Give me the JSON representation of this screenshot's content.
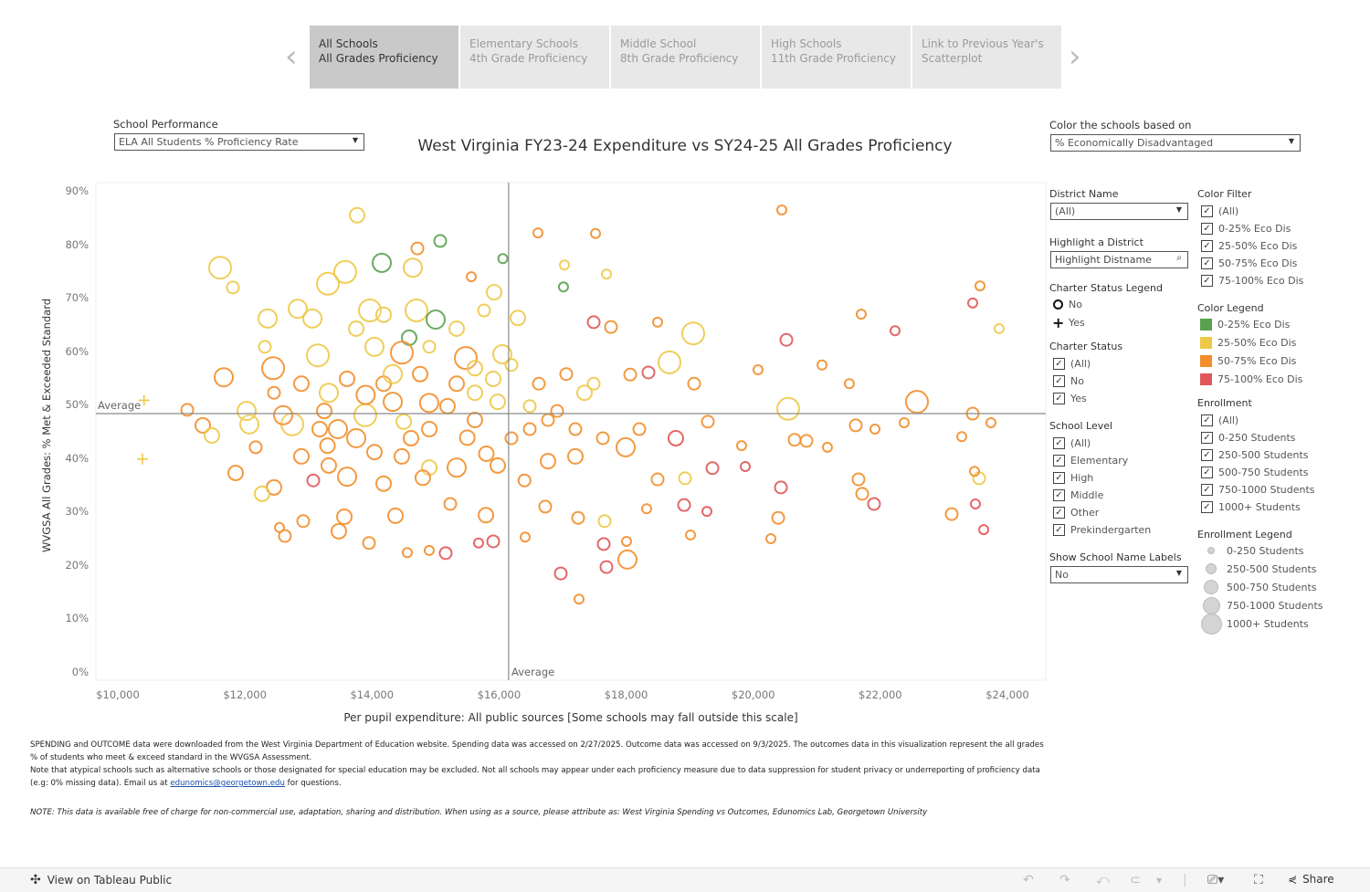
{
  "nav": {
    "tabs": [
      {
        "line1": "All Schools",
        "line2": "All Grades Proficiency",
        "active": true
      },
      {
        "line1": "Elementary Schools",
        "line2": "4th Grade Proficiency",
        "active": false
      },
      {
        "line1": "Middle School",
        "line2": "8th Grade Proficiency",
        "active": false
      },
      {
        "line1": "High Schools",
        "line2": "11th Grade Proficiency",
        "active": false
      },
      {
        "line1": "Link to Previous Year's",
        "line2": "Scatterplot",
        "active": false
      }
    ],
    "prev_icon": "‹",
    "next_icon": "›"
  },
  "controls": {
    "school_performance_label": "School Performance",
    "school_performance_value": "ELA All Students % Proficiency Rate",
    "color_by_label": "Color the schools based on",
    "color_by_value": "% Economically Disadvantaged"
  },
  "chart_data": {
    "type": "scatter",
    "title": "West Virginia FY23-24 Expenditure vs SY24-25 All Grades Proficiency",
    "xlabel": "Per pupil expenditure: All public sources [Some schools may fall outside this scale]",
    "ylabel": "WVGSA All Grades: % Met & Exceeded Standard",
    "xlim": [
      9700,
      24600
    ],
    "ylim": [
      0,
      91
    ],
    "x_ticks": [
      "$10,000",
      "$12,000",
      "$14,000",
      "$16,000",
      "$18,000",
      "$20,000",
      "$22,000",
      "$24,000"
    ],
    "x_tick_values": [
      10000,
      12000,
      14000,
      16000,
      18000,
      20000,
      22000,
      24000
    ],
    "y_ticks": [
      "0%",
      "10%",
      "20%",
      "30%",
      "40%",
      "50%",
      "60%",
      "70%",
      "80%",
      "90%"
    ],
    "y_tick_values": [
      0,
      10,
      20,
      30,
      40,
      50,
      60,
      70,
      80,
      90
    ],
    "average_x": 16150,
    "average_y": 48.5,
    "average_label": "Average",
    "grid": false,
    "color_groups": [
      "0-25% Eco Dis",
      "25-50% Eco Dis",
      "50-75% Eco Dis",
      "75-100% Eco Dis"
    ],
    "colors": [
      "#59a14f",
      "#edc948",
      "#f28e2b",
      "#e15759"
    ],
    "size_groups": [
      "0-250 Students",
      "250-500 Students",
      "500-750 Students",
      "750-1000 Students",
      "1000+ Students"
    ],
    "point_fields": [
      "expenditure",
      "pct_met_exceeded",
      "eco_dis_group",
      "enrollment_group"
    ],
    "points": [
      [
        13766,
        85.6,
        1,
        2
      ],
      [
        15074,
        80.8,
        0,
        1
      ],
      [
        14154,
        76.7,
        0,
        3
      ],
      [
        14643,
        75.8,
        1,
        3
      ],
      [
        11610,
        75.8,
        1,
        4
      ],
      [
        13579,
        75,
        1,
        4
      ],
      [
        13306,
        72.8,
        1,
        4
      ],
      [
        11811,
        72.1,
        1,
        1
      ],
      [
        14715,
        79.4,
        2,
        1
      ],
      [
        15563,
        74.1,
        2,
        0
      ],
      [
        15922,
        71.2,
        1,
        2
      ],
      [
        16612,
        82.3,
        2,
        0
      ],
      [
        17518,
        82.2,
        2,
        0
      ],
      [
        17029,
        76.3,
        1,
        0
      ],
      [
        17014,
        72.2,
        0,
        0
      ],
      [
        17690,
        74.6,
        1,
        0
      ],
      [
        16060,
        77.5,
        0,
        0
      ],
      [
        20450,
        86.6,
        2,
        0
      ],
      [
        23569,
        72.4,
        2,
        0
      ],
      [
        23454,
        69.2,
        3,
        0
      ],
      [
        23871,
        64.4,
        1,
        0
      ],
      [
        22232,
        64,
        3,
        0
      ],
      [
        21700,
        67.1,
        2,
        0
      ],
      [
        13967,
        67.8,
        1,
        4
      ],
      [
        14700,
        67.8,
        1,
        4
      ],
      [
        15002,
        66.1,
        0,
        3
      ],
      [
        14585,
        62.7,
        0,
        2
      ],
      [
        16296,
        66.4,
        1,
        2
      ],
      [
        12832,
        68.1,
        1,
        3
      ],
      [
        12358,
        66.3,
        1,
        3
      ],
      [
        13062,
        66.3,
        1,
        3
      ],
      [
        19056,
        63.5,
        1,
        4
      ],
      [
        17489,
        65.6,
        3,
        1
      ],
      [
        17762,
        64.7,
        2,
        1
      ],
      [
        18495,
        65.6,
        2,
        0
      ],
      [
        20522,
        62.3,
        3,
        1
      ],
      [
        11667,
        55.3,
        2,
        3
      ],
      [
        12444,
        57,
        2,
        4
      ],
      [
        13148,
        59.4,
        1,
        4
      ],
      [
        14039,
        61,
        1,
        3
      ],
      [
        14470,
        59.9,
        2,
        4
      ],
      [
        15476,
        58.9,
        2,
        4
      ],
      [
        16051,
        59.6,
        1,
        3
      ],
      [
        18682,
        58.1,
        1,
        4
      ],
      [
        22577,
        50.7,
        2,
        4
      ],
      [
        20550,
        49.4,
        1,
        4
      ],
      [
        11093,
        49.2,
        2,
        1
      ],
      [
        11337,
        46.3,
        2,
        2
      ],
      [
        11481,
        44.4,
        1,
        2
      ],
      [
        12070,
        46.5,
        1,
        3
      ],
      [
        12746,
        46.5,
        1,
        4
      ],
      [
        13320,
        52.4,
        1,
        3
      ],
      [
        13895,
        48.2,
        1,
        4
      ],
      [
        14327,
        50.7,
        2,
        3
      ],
      [
        15189,
        49.9,
        2,
        2
      ],
      [
        15620,
        47.3,
        2,
        2
      ],
      [
        15979,
        50.7,
        1,
        2
      ],
      [
        16483,
        49.9,
        1,
        1
      ],
      [
        16914,
        49,
        2,
        1
      ],
      [
        17345,
        52.4,
        1,
        2
      ],
      [
        18064,
        55.8,
        2,
        1
      ],
      [
        18351,
        56.2,
        3,
        1
      ],
      [
        19070,
        54.1,
        2,
        1
      ],
      [
        20076,
        56.7,
        2,
        0
      ],
      [
        21082,
        57.6,
        2,
        0
      ],
      [
        21513,
        54.1,
        2,
        0
      ],
      [
        23454,
        48.5,
        2,
        1
      ],
      [
        23741,
        46.8,
        2,
        0
      ],
      [
        23282,
        44.2,
        2,
        0
      ],
      [
        21916,
        45.6,
        2,
        0
      ],
      [
        21614,
        46.3,
        2,
        1
      ],
      [
        22376,
        46.8,
        2,
        0
      ],
      [
        18782,
        43.9,
        3,
        2
      ],
      [
        19286,
        47,
        2,
        1
      ],
      [
        19817,
        42.5,
        2,
        0
      ],
      [
        20651,
        43.6,
        2,
        1
      ],
      [
        20838,
        43.4,
        2,
        1
      ],
      [
        21168,
        42.2,
        2,
        0
      ],
      [
        11854,
        37.4,
        2,
        2
      ],
      [
        12458,
        34.7,
        2,
        2
      ],
      [
        12271,
        33.5,
        1,
        2
      ],
      [
        13076,
        36,
        3,
        1
      ],
      [
        13608,
        36.7,
        2,
        3
      ],
      [
        14183,
        35.4,
        2,
        2
      ],
      [
        14902,
        38.4,
        1,
        2
      ],
      [
        15333,
        38.4,
        2,
        3
      ],
      [
        15979,
        38.8,
        2,
        2
      ],
      [
        16770,
        39.6,
        2,
        2
      ],
      [
        17201,
        40.5,
        2,
        2
      ],
      [
        17992,
        42.2,
        2,
        3
      ],
      [
        18495,
        36.2,
        2,
        1
      ],
      [
        19358,
        38.3,
        3,
        1
      ],
      [
        19875,
        38.6,
        3,
        0
      ],
      [
        18926,
        36.4,
        1,
        1
      ],
      [
        21657,
        36.2,
        2,
        1
      ],
      [
        21715,
        33.5,
        2,
        1
      ],
      [
        21901,
        31.6,
        3,
        1
      ],
      [
        20436,
        34.7,
        3,
        1
      ],
      [
        23555,
        36.4,
        1,
        1
      ],
      [
        23483,
        37.7,
        2,
        0
      ],
      [
        23497,
        31.6,
        3,
        0
      ],
      [
        23124,
        29.7,
        2,
        1
      ],
      [
        23627,
        26.8,
        3,
        0
      ],
      [
        12918,
        28.4,
        2,
        1
      ],
      [
        13565,
        29.2,
        2,
        2
      ],
      [
        13478,
        26.5,
        2,
        2
      ],
      [
        14370,
        29.4,
        2,
        2
      ],
      [
        15232,
        31.6,
        2,
        1
      ],
      [
        15793,
        29.5,
        2,
        2
      ],
      [
        16727,
        31.1,
        2,
        1
      ],
      [
        17244,
        29,
        2,
        1
      ],
      [
        17661,
        28.4,
        1,
        1
      ],
      [
        18322,
        30.7,
        2,
        0
      ],
      [
        18912,
        31.4,
        3,
        1
      ],
      [
        19271,
        30.2,
        3,
        0
      ],
      [
        20393,
        29,
        2,
        1
      ],
      [
        12630,
        25.6,
        2,
        1
      ],
      [
        12544,
        27.2,
        2,
        0
      ],
      [
        13953,
        24.3,
        2,
        1
      ],
      [
        14556,
        22.5,
        2,
        0
      ],
      [
        14901,
        22.9,
        2,
        0
      ],
      [
        15160,
        22.4,
        3,
        1
      ],
      [
        15678,
        24.3,
        3,
        0
      ],
      [
        15908,
        24.6,
        3,
        1
      ],
      [
        16411,
        25.4,
        2,
        0
      ],
      [
        17647,
        24.1,
        3,
        1
      ],
      [
        18006,
        24.6,
        2,
        0
      ],
      [
        17690,
        19.8,
        3,
        1
      ],
      [
        18020,
        21.2,
        2,
        3
      ],
      [
        16971,
        18.6,
        3,
        1
      ],
      [
        17259,
        13.8,
        2,
        0
      ],
      [
        19013,
        25.8,
        2,
        0
      ],
      [
        20278,
        25.1,
        2,
        0
      ],
      [
        13752,
        43.9,
        2,
        3
      ],
      [
        14039,
        41.3,
        2,
        2
      ],
      [
        14614,
        43.9,
        2,
        2
      ],
      [
        13464,
        45.6,
        2,
        3
      ],
      [
        12889,
        40.5,
        2,
        2
      ],
      [
        12602,
        48.2,
        2,
        3
      ],
      [
        13177,
        45.6,
        2,
        2
      ],
      [
        14183,
        54.1,
        2,
        2
      ],
      [
        13608,
        55,
        2,
        2
      ],
      [
        14758,
        55.9,
        2,
        2
      ],
      [
        15333,
        54.1,
        2,
        2
      ],
      [
        15620,
        52.4,
        1,
        2
      ],
      [
        15908,
        55,
        1,
        2
      ],
      [
        16195,
        57.6,
        1,
        1
      ],
      [
        16626,
        54.1,
        2,
        1
      ],
      [
        17057,
        55.9,
        2,
        1
      ],
      [
        17489,
        54.1,
        1,
        1
      ],
      [
        16770,
        47.3,
        2,
        1
      ],
      [
        17201,
        45.6,
        2,
        1
      ],
      [
        17633,
        43.9,
        2,
        1
      ],
      [
        18207,
        45.6,
        2,
        1
      ],
      [
        16195,
        43.9,
        2,
        1
      ],
      [
        16483,
        45.6,
        2,
        1
      ],
      [
        14902,
        45.6,
        2,
        2
      ],
      [
        14470,
        40.5,
        2,
        2
      ],
      [
        13320,
        38.8,
        2,
        2
      ],
      [
        12027,
        49,
        1,
        3
      ],
      [
        12170,
        42.2,
        2,
        1
      ],
      [
        12458,
        52.4,
        2,
        1
      ],
      [
        12889,
        54.1,
        2,
        2
      ],
      [
        13249,
        49,
        2,
        2
      ],
      [
        14183,
        67,
        1,
        2
      ],
      [
        13752,
        64.4,
        1,
        2
      ],
      [
        14327,
        55.9,
        1,
        3
      ],
      [
        15333,
        64.4,
        1,
        2
      ],
      [
        15764,
        67.8,
        1,
        1
      ],
      [
        15620,
        57,
        1,
        2
      ],
      [
        14902,
        61,
        1,
        1
      ],
      [
        12314,
        61,
        1,
        1
      ],
      [
        14900,
        50.5,
        2,
        3
      ],
      [
        15500,
        44,
        2,
        2
      ],
      [
        13900,
        52,
        2,
        3
      ],
      [
        14500,
        47,
        1,
        2
      ],
      [
        15800,
        41,
        2,
        2
      ],
      [
        16400,
        36,
        2,
        1
      ],
      [
        13300,
        42.5,
        2,
        2
      ],
      [
        14800,
        36.5,
        2,
        2
      ]
    ],
    "charter_points": [
      [
        10413,
        51
      ],
      [
        10388,
        40
      ]
    ]
  },
  "filters": {
    "district_name": {
      "label": "District Name",
      "value": "(All)"
    },
    "highlight": {
      "label": "Highlight a District",
      "placeholder": "Highlight Distname"
    },
    "charter_legend": {
      "label": "Charter Status Legend",
      "items": [
        {
          "icon": "circle-icon",
          "label": "No"
        },
        {
          "icon": "plus-icon",
          "label": "Yes"
        }
      ]
    },
    "charter_status": {
      "label": "Charter Status",
      "items": [
        "(All)",
        "No",
        "Yes"
      ]
    },
    "school_level": {
      "label": "School Level",
      "items": [
        "(All)",
        "Elementary",
        "High",
        "Middle",
        "Other",
        "Prekindergarten"
      ]
    },
    "labels": {
      "label": "Show School Name Labels",
      "value": "No"
    },
    "color_filter": {
      "label": "Color Filter",
      "items": [
        "(All)",
        "0-25% Eco Dis",
        "25-50% Eco Dis",
        "50-75% Eco Dis",
        "75-100% Eco Dis"
      ]
    },
    "color_legend": {
      "label": "Color Legend",
      "items": [
        "0-25% Eco Dis",
        "25-50% Eco Dis",
        "50-75% Eco Dis",
        "75-100% Eco Dis"
      ]
    },
    "enrollment": {
      "label": "Enrollment",
      "items": [
        "(All)",
        "0-250 Students",
        "250-500 Students",
        "500-750 Students",
        "750-1000 Students",
        "1000+ Students"
      ]
    },
    "enrollment_legend": {
      "label": "Enrollment Legend",
      "items": [
        "0-250 Students",
        "250-500 Students",
        "500-750 Students",
        "750-1000 Students",
        "1000+ Students"
      ]
    },
    "check_mark": "✓"
  },
  "footnote": {
    "p1": "SPENDING and OUTCOME data were downloaded from the West Virginia Department of Education website. Spending data was accessed on 2/27/2025. Outcome data was accessed on 9/3/2025. The outcomes data in this visualization represent the all grades % of students who meet & exceed standard in the WVGSA Assessment.",
    "p2a": "Note that atypical schools such as alternative schools or those designated for special education may be excluded. Not all schools may appear under each proficiency measure due to data suppression for student privacy or underreporting of proficiency data (e.g: 0% missing data). Email us at ",
    "email": "edunomics@georgetown.edu",
    "p2b": " for questions.",
    "note": "NOTE: This data is available free of charge for non-commercial use, adaptation, sharing and distribution. When using as a source, please attribute as: West Virginia Spending vs Outcomes, Edunomics Lab, Georgetown University"
  },
  "toolbar": {
    "view_label": "View on Tableau Public",
    "share_label": "Share"
  }
}
